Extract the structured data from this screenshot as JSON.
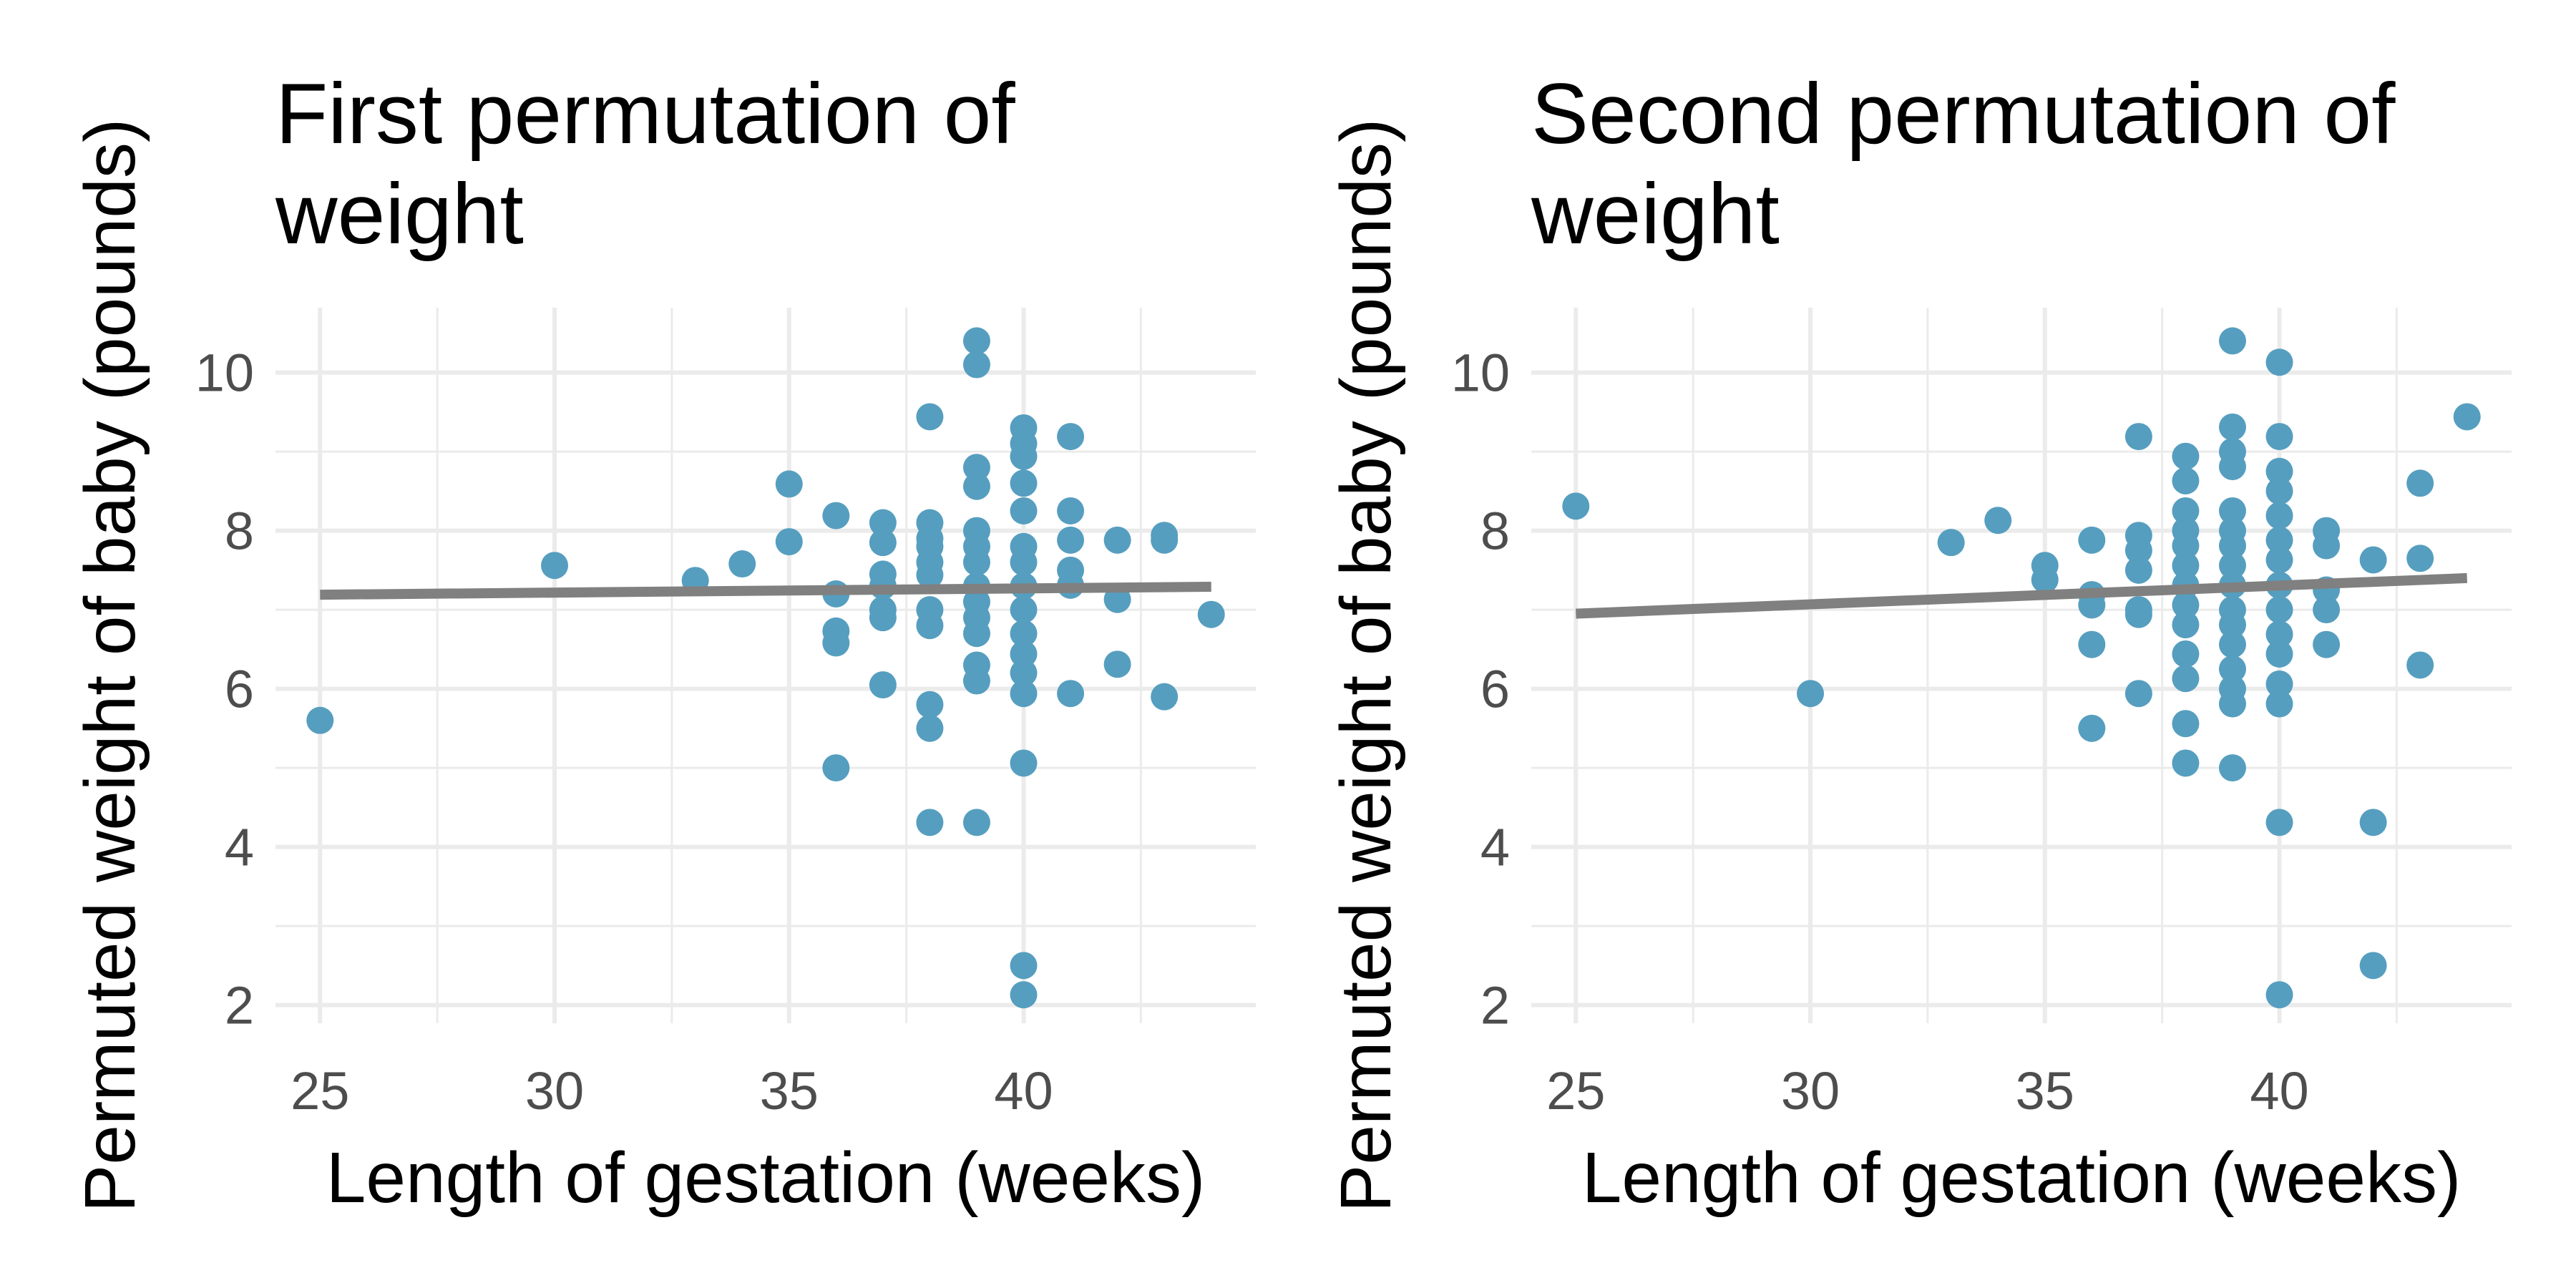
{
  "chart_data": [
    {
      "type": "scatter",
      "title_lines": [
        "First permutation of",
        "weight"
      ],
      "xlabel": "Length of gestation (weeks)",
      "ylabel": "Permuted weight of baby (pounds)",
      "xlim": [
        24.05,
        44.95
      ],
      "ylim": [
        1.77,
        10.82
      ],
      "xticks": [
        25,
        30,
        35,
        40
      ],
      "yticks": [
        2,
        4,
        6,
        8,
        10
      ],
      "point_color": "#569ebf",
      "line_color": "#808080",
      "fit_line": {
        "x": [
          25,
          44
        ],
        "y": [
          7.19,
          7.29
        ]
      },
      "points": [
        {
          "x": 25,
          "y": 5.6
        },
        {
          "x": 30,
          "y": 7.56
        },
        {
          "x": 33,
          "y": 7.37
        },
        {
          "x": 34,
          "y": 7.58
        },
        {
          "x": 35,
          "y": 8.59
        },
        {
          "x": 35,
          "y": 7.86
        },
        {
          "x": 36,
          "y": 8.19
        },
        {
          "x": 36,
          "y": 7.2
        },
        {
          "x": 36,
          "y": 6.73
        },
        {
          "x": 36,
          "y": 6.58
        },
        {
          "x": 36,
          "y": 5.0
        },
        {
          "x": 37,
          "y": 8.1
        },
        {
          "x": 37,
          "y": 7.85
        },
        {
          "x": 37,
          "y": 7.45
        },
        {
          "x": 37,
          "y": 7.3
        },
        {
          "x": 37,
          "y": 7.0
        },
        {
          "x": 37,
          "y": 6.9
        },
        {
          "x": 37,
          "y": 6.05
        },
        {
          "x": 38,
          "y": 9.44
        },
        {
          "x": 38,
          "y": 8.1
        },
        {
          "x": 38,
          "y": 7.9
        },
        {
          "x": 38,
          "y": 7.8
        },
        {
          "x": 38,
          "y": 7.6
        },
        {
          "x": 38,
          "y": 7.44
        },
        {
          "x": 38,
          "y": 7.0
        },
        {
          "x": 38,
          "y": 6.8
        },
        {
          "x": 38,
          "y": 5.8
        },
        {
          "x": 38,
          "y": 5.5
        },
        {
          "x": 38,
          "y": 4.31
        },
        {
          "x": 39,
          "y": 10.4
        },
        {
          "x": 39,
          "y": 10.1
        },
        {
          "x": 39,
          "y": 8.8
        },
        {
          "x": 39,
          "y": 8.56
        },
        {
          "x": 39,
          "y": 8.0
        },
        {
          "x": 39,
          "y": 7.8
        },
        {
          "x": 39,
          "y": 7.6
        },
        {
          "x": 39,
          "y": 7.3
        },
        {
          "x": 39,
          "y": 7.1
        },
        {
          "x": 39,
          "y": 6.9
        },
        {
          "x": 39,
          "y": 6.7
        },
        {
          "x": 39,
          "y": 6.3
        },
        {
          "x": 39,
          "y": 6.1
        },
        {
          "x": 39,
          "y": 4.31
        },
        {
          "x": 40,
          "y": 9.3
        },
        {
          "x": 40,
          "y": 9.1
        },
        {
          "x": 40,
          "y": 8.94
        },
        {
          "x": 40,
          "y": 8.6
        },
        {
          "x": 40,
          "y": 8.25
        },
        {
          "x": 40,
          "y": 7.8
        },
        {
          "x": 40,
          "y": 7.6
        },
        {
          "x": 40,
          "y": 7.3
        },
        {
          "x": 40,
          "y": 7.0
        },
        {
          "x": 40,
          "y": 6.7
        },
        {
          "x": 40,
          "y": 6.44
        },
        {
          "x": 40,
          "y": 6.2
        },
        {
          "x": 40,
          "y": 5.94
        },
        {
          "x": 40,
          "y": 5.06
        },
        {
          "x": 40,
          "y": 2.5
        },
        {
          "x": 40,
          "y": 2.13
        },
        {
          "x": 41,
          "y": 9.19
        },
        {
          "x": 41,
          "y": 8.25
        },
        {
          "x": 41,
          "y": 7.88
        },
        {
          "x": 41,
          "y": 7.5
        },
        {
          "x": 41,
          "y": 7.31
        },
        {
          "x": 41,
          "y": 5.94
        },
        {
          "x": 42,
          "y": 7.88
        },
        {
          "x": 42,
          "y": 7.13
        },
        {
          "x": 42,
          "y": 6.31
        },
        {
          "x": 43,
          "y": 7.94
        },
        {
          "x": 43,
          "y": 7.88
        },
        {
          "x": 43,
          "y": 5.9
        },
        {
          "x": 44,
          "y": 6.94
        }
      ]
    },
    {
      "type": "scatter",
      "title_lines": [
        "Second permutation of",
        "weight"
      ],
      "xlabel": "Length of gestation (weeks)",
      "ylabel": "Permuted weight of baby (pounds)",
      "xlim": [
        24.05,
        44.95
      ],
      "ylim": [
        1.77,
        10.82
      ],
      "xticks": [
        25,
        30,
        35,
        40
      ],
      "yticks": [
        2,
        4,
        6,
        8,
        10
      ],
      "point_color": "#569ebf",
      "line_color": "#808080",
      "fit_line": {
        "x": [
          25,
          44
        ],
        "y": [
          6.95,
          7.4
        ]
      },
      "points": [
        {
          "x": 25,
          "y": 8.31
        },
        {
          "x": 30,
          "y": 5.94
        },
        {
          "x": 33,
          "y": 7.85
        },
        {
          "x": 34,
          "y": 8.13
        },
        {
          "x": 35,
          "y": 7.56
        },
        {
          "x": 35,
          "y": 7.38
        },
        {
          "x": 36,
          "y": 7.88
        },
        {
          "x": 36,
          "y": 7.19
        },
        {
          "x": 36,
          "y": 7.06
        },
        {
          "x": 36,
          "y": 6.56
        },
        {
          "x": 36,
          "y": 5.5
        },
        {
          "x": 37,
          "y": 9.19
        },
        {
          "x": 37,
          "y": 7.94
        },
        {
          "x": 37,
          "y": 7.75
        },
        {
          "x": 37,
          "y": 7.5
        },
        {
          "x": 37,
          "y": 7.0
        },
        {
          "x": 37,
          "y": 6.94
        },
        {
          "x": 37,
          "y": 5.94
        },
        {
          "x": 38,
          "y": 8.94
        },
        {
          "x": 38,
          "y": 8.63
        },
        {
          "x": 38,
          "y": 8.25
        },
        {
          "x": 38,
          "y": 8.0
        },
        {
          "x": 38,
          "y": 7.81
        },
        {
          "x": 38,
          "y": 7.56
        },
        {
          "x": 38,
          "y": 7.31
        },
        {
          "x": 38,
          "y": 7.06
        },
        {
          "x": 38,
          "y": 6.81
        },
        {
          "x": 38,
          "y": 6.44
        },
        {
          "x": 38,
          "y": 6.13
        },
        {
          "x": 38,
          "y": 5.56
        },
        {
          "x": 38,
          "y": 5.06
        },
        {
          "x": 39,
          "y": 10.4
        },
        {
          "x": 39,
          "y": 9.31
        },
        {
          "x": 39,
          "y": 9.0
        },
        {
          "x": 39,
          "y": 8.81
        },
        {
          "x": 39,
          "y": 8.25
        },
        {
          "x": 39,
          "y": 8.0
        },
        {
          "x": 39,
          "y": 7.81
        },
        {
          "x": 39,
          "y": 7.56
        },
        {
          "x": 39,
          "y": 7.31
        },
        {
          "x": 39,
          "y": 7.0
        },
        {
          "x": 39,
          "y": 6.81
        },
        {
          "x": 39,
          "y": 6.56
        },
        {
          "x": 39,
          "y": 6.25
        },
        {
          "x": 39,
          "y": 6.0
        },
        {
          "x": 39,
          "y": 5.81
        },
        {
          "x": 39,
          "y": 5.0
        },
        {
          "x": 40,
          "y": 10.13
        },
        {
          "x": 40,
          "y": 9.19
        },
        {
          "x": 40,
          "y": 8.75
        },
        {
          "x": 40,
          "y": 8.5
        },
        {
          "x": 40,
          "y": 8.19
        },
        {
          "x": 40,
          "y": 7.88
        },
        {
          "x": 40,
          "y": 7.63
        },
        {
          "x": 40,
          "y": 7.31
        },
        {
          "x": 40,
          "y": 7.0
        },
        {
          "x": 40,
          "y": 6.69
        },
        {
          "x": 40,
          "y": 6.44
        },
        {
          "x": 40,
          "y": 6.06
        },
        {
          "x": 40,
          "y": 5.81
        },
        {
          "x": 40,
          "y": 4.31
        },
        {
          "x": 40,
          "y": 2.13
        },
        {
          "x": 41,
          "y": 8.0
        },
        {
          "x": 41,
          "y": 7.81
        },
        {
          "x": 41,
          "y": 7.25
        },
        {
          "x": 41,
          "y": 7.0
        },
        {
          "x": 41,
          "y": 6.56
        },
        {
          "x": 42,
          "y": 7.63
        },
        {
          "x": 42,
          "y": 4.31
        },
        {
          "x": 42,
          "y": 2.5
        },
        {
          "x": 43,
          "y": 8.6
        },
        {
          "x": 43,
          "y": 7.65
        },
        {
          "x": 43,
          "y": 6.3
        },
        {
          "x": 44,
          "y": 9.44
        }
      ]
    }
  ]
}
